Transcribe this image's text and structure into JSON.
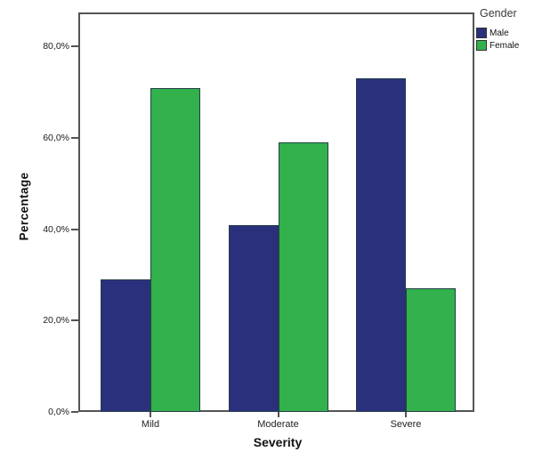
{
  "chart_data": {
    "type": "bar",
    "title": "",
    "categories": [
      "Mild",
      "Moderate",
      "Severe"
    ],
    "series": [
      {
        "name": "Male",
        "color": "#2A307C",
        "values": [
          29,
          41,
          73
        ]
      },
      {
        "name": "Female",
        "color": "#32B14C",
        "values": [
          71,
          59,
          27
        ]
      }
    ],
    "xlabel": "Severity",
    "ylabel": "Percentage",
    "legend_title": "Gender",
    "legend_position": "top-right-outside",
    "y_ticks": [
      {
        "value": 0,
        "label": "0,0%"
      },
      {
        "value": 20,
        "label": "20,0%"
      },
      {
        "value": 40,
        "label": "40,0%"
      },
      {
        "value": 60,
        "label": "60,0%"
      },
      {
        "value": 80,
        "label": "80,0%"
      }
    ],
    "ylim": [
      0,
      87.5
    ],
    "grid": false,
    "bar_outline_color": "#24404a",
    "frame_color": "#545454"
  }
}
